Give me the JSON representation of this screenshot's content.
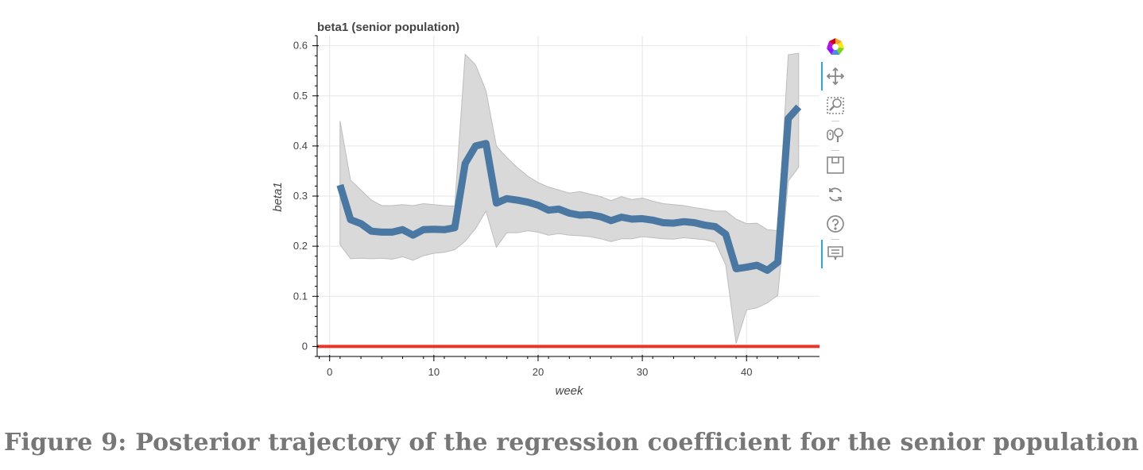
{
  "figure": {
    "caption": "Figure 9: Posterior trajectory of the regression coefficient for the senior population"
  },
  "toolbar": {
    "tools": [
      {
        "name": "bokeh-logo-icon",
        "interactable": true,
        "active": false
      },
      {
        "name": "pan-icon",
        "interactable": true,
        "active": true
      },
      {
        "name": "box-zoom-icon",
        "interactable": true,
        "active": false
      },
      {
        "name": "wheel-zoom-icon",
        "interactable": true,
        "active": false
      },
      {
        "name": "save-icon",
        "interactable": true,
        "active": false
      },
      {
        "name": "reset-icon",
        "interactable": true,
        "active": false
      },
      {
        "name": "help-icon",
        "interactable": true,
        "active": false
      },
      {
        "name": "hover-icon",
        "interactable": true,
        "active": true
      }
    ]
  },
  "chart_data": {
    "type": "line",
    "title": "beta1 (senior population)",
    "xlabel": "week",
    "ylabel": "beta1",
    "xlim": [
      -1.2,
      47
    ],
    "ylim": [
      -0.02,
      0.62
    ],
    "xticks": [
      0,
      10,
      20,
      30,
      40
    ],
    "xtick_labels": [
      "0",
      "10",
      "20",
      "30",
      "40"
    ],
    "yticks": [
      0,
      0.1,
      0.2,
      0.3,
      0.4,
      0.5,
      0.6
    ],
    "ytick_labels": [
      "0",
      "0.1",
      "0.2",
      "0.3",
      "0.4",
      "0.5",
      "0.6"
    ],
    "grid": true,
    "colors": {
      "mean": "#4a78a3",
      "band": "#d9d9d9",
      "band_edge": "#bdbdbd",
      "reference": "#e8352a"
    },
    "series": [
      {
        "kind": "line",
        "x": [
          1,
          2,
          3,
          4,
          5,
          6,
          7,
          8,
          9,
          10,
          11,
          12,
          13,
          14,
          15,
          16,
          17,
          18,
          19,
          20,
          21,
          22,
          23,
          24,
          25,
          26,
          27,
          28,
          29,
          30,
          31,
          32,
          33,
          34,
          35,
          36,
          37,
          38,
          39,
          40,
          41,
          42,
          43,
          44,
          45
        ],
        "values": [
          0.322,
          0.253,
          0.245,
          0.23,
          0.228,
          0.228,
          0.233,
          0.222,
          0.233,
          0.234,
          0.233,
          0.237,
          0.365,
          0.4,
          0.405,
          0.286,
          0.295,
          0.292,
          0.288,
          0.282,
          0.272,
          0.274,
          0.266,
          0.262,
          0.263,
          0.259,
          0.251,
          0.258,
          0.254,
          0.255,
          0.252,
          0.247,
          0.246,
          0.249,
          0.247,
          0.242,
          0.239,
          0.224,
          0.155,
          0.158,
          0.162,
          0.152,
          0.168,
          0.455,
          0.478
        ]
      },
      {
        "kind": "band",
        "x": [
          1,
          2,
          3,
          4,
          5,
          6,
          7,
          8,
          9,
          10,
          11,
          12,
          13,
          14,
          15,
          16,
          17,
          18,
          19,
          20,
          21,
          22,
          23,
          24,
          25,
          26,
          27,
          28,
          29,
          30,
          31,
          32,
          33,
          34,
          35,
          36,
          37,
          38,
          39,
          40,
          41,
          42,
          43,
          44,
          45
        ],
        "upper": [
          0.45,
          0.332,
          0.312,
          0.292,
          0.281,
          0.281,
          0.283,
          0.281,
          0.285,
          0.283,
          0.281,
          0.28,
          0.583,
          0.562,
          0.51,
          0.4,
          0.377,
          0.357,
          0.34,
          0.327,
          0.318,
          0.312,
          0.306,
          0.309,
          0.304,
          0.299,
          0.291,
          0.299,
          0.293,
          0.296,
          0.29,
          0.285,
          0.283,
          0.281,
          0.277,
          0.274,
          0.27,
          0.27,
          0.254,
          0.245,
          0.246,
          0.233,
          0.231,
          0.582,
          0.585
        ],
        "lower": [
          0.203,
          0.175,
          0.176,
          0.175,
          0.176,
          0.174,
          0.179,
          0.172,
          0.181,
          0.186,
          0.188,
          0.193,
          0.21,
          0.235,
          0.27,
          0.198,
          0.227,
          0.227,
          0.231,
          0.228,
          0.222,
          0.225,
          0.222,
          0.221,
          0.219,
          0.215,
          0.209,
          0.215,
          0.215,
          0.219,
          0.217,
          0.215,
          0.214,
          0.217,
          0.215,
          0.213,
          0.208,
          0.163,
          0.006,
          0.073,
          0.077,
          0.087,
          0.102,
          0.33,
          0.358
        ]
      },
      {
        "kind": "hline",
        "y": 0
      }
    ]
  }
}
